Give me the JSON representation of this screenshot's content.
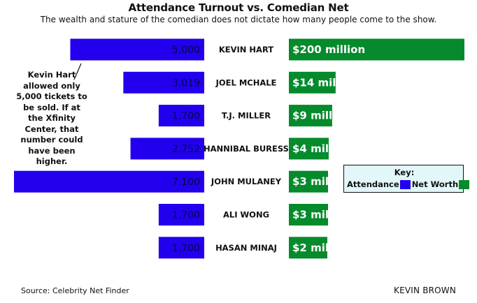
{
  "chart_data": {
    "type": "bar",
    "title": "Attendance Turnout vs. Comedian Net",
    "subtitle": "The wealth and stature of the comedian does not dictate how many people come to the show.",
    "categories": [
      "KEVIN HART",
      "JOEL MCHALE",
      "T.J. MILLER",
      "HANNIBAL BURESS",
      "JOHN MULANEY",
      "ALI WONG",
      "HASAN MINAJ"
    ],
    "series": [
      {
        "name": "Attendance",
        "values": [
          5000,
          3019,
          1700,
          2752,
          7100,
          1700,
          1700
        ],
        "labels": [
          "5,000",
          "3,019",
          "1,700",
          "2,752",
          "7,100",
          "1,700",
          "1,700"
        ]
      },
      {
        "name": "Net Worth",
        "values": [
          200,
          14,
          9,
          4,
          3,
          3,
          2
        ],
        "labels": [
          "$200 million",
          "$14 million",
          "$9 million",
          "$4 mil",
          "$3 mil",
          "$3 mil",
          "$2 mil"
        ]
      }
    ],
    "annotation": "Kevin Hart allowed only 5,000 tickets to be sold. If at the Xfinity Center, that number could have been higher.",
    "legend": {
      "title": "Key:",
      "placement": "right"
    }
  },
  "colors": {
    "attendance": "#2200ee",
    "net_worth": "#058a2c",
    "legend_bg": "#e2f7f9"
  },
  "source": "Source: Celebrity Net Finder",
  "author": "KEVIN BROWN"
}
